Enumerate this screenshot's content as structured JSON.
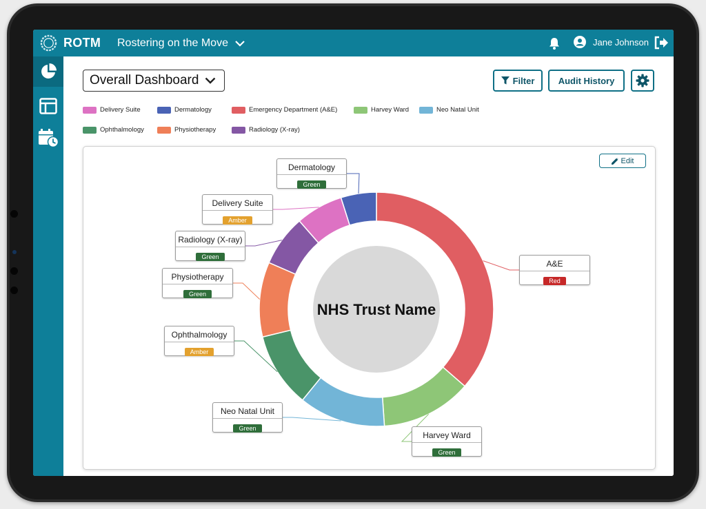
{
  "header": {
    "brand": "ROTM",
    "app_name": "Rostering on the Move",
    "user_name": "Jane Johnson"
  },
  "sidebar": {
    "items": [
      {
        "icon": "pie-chart-icon",
        "active": true
      },
      {
        "icon": "layout-icon",
        "active": false
      },
      {
        "icon": "calendar-clock-icon",
        "active": false
      }
    ]
  },
  "toolbar": {
    "dashboard_select": "Overall Dashboard",
    "filter_label": "Filter",
    "audit_label": "Audit History"
  },
  "legend": [
    {
      "label": "Delivery Suite",
      "color": "#dd72c3"
    },
    {
      "label": "Dermatology",
      "color": "#4a63b5"
    },
    {
      "label": "Emergency Department (A&E)",
      "color": "#e05e62"
    },
    {
      "label": "Harvey Ward",
      "color": "#8ec677"
    },
    {
      "label": "Neo Natal Unit",
      "color": "#72b5d7"
    },
    {
      "label": "Ophthalmology",
      "color": "#4a9469"
    },
    {
      "label": "Physiotherapy",
      "color": "#ef7f58"
    },
    {
      "label": "Radiology (X-ray)",
      "color": "#8457a4"
    }
  ],
  "card": {
    "edit_label": "Edit",
    "center_label": "NHS Trust Name"
  },
  "status_colors": {
    "Green": "#2f6e3a",
    "Amber": "#e3a12e",
    "Red": "#c62828"
  },
  "chart_data": {
    "type": "pie",
    "variant": "donut",
    "center_text": "NHS Trust Name",
    "slices": [
      {
        "name": "A&E",
        "value": 33.5,
        "color": "#e05e62",
        "status": "Red"
      },
      {
        "name": "Harvey Ward",
        "value": 11.5,
        "color": "#8ec677",
        "status": "Green"
      },
      {
        "name": "Neo Natal Unit",
        "value": 11,
        "color": "#72b5d7",
        "status": "Green"
      },
      {
        "name": "Ophthalmology",
        "value": 9.5,
        "color": "#4a9469",
        "status": "Amber"
      },
      {
        "name": "Physiotherapy",
        "value": 9.5,
        "color": "#ef7f58",
        "status": "Green"
      },
      {
        "name": "Radiology (X-ray)",
        "value": 6.5,
        "color": "#8457a4",
        "status": "Green"
      },
      {
        "name": "Delivery Suite",
        "value": 6,
        "color": "#dd72c3",
        "status": "Amber"
      },
      {
        "name": "Dermatology",
        "value": 4.5,
        "color": "#4a63b5",
        "status": "Green"
      }
    ]
  }
}
